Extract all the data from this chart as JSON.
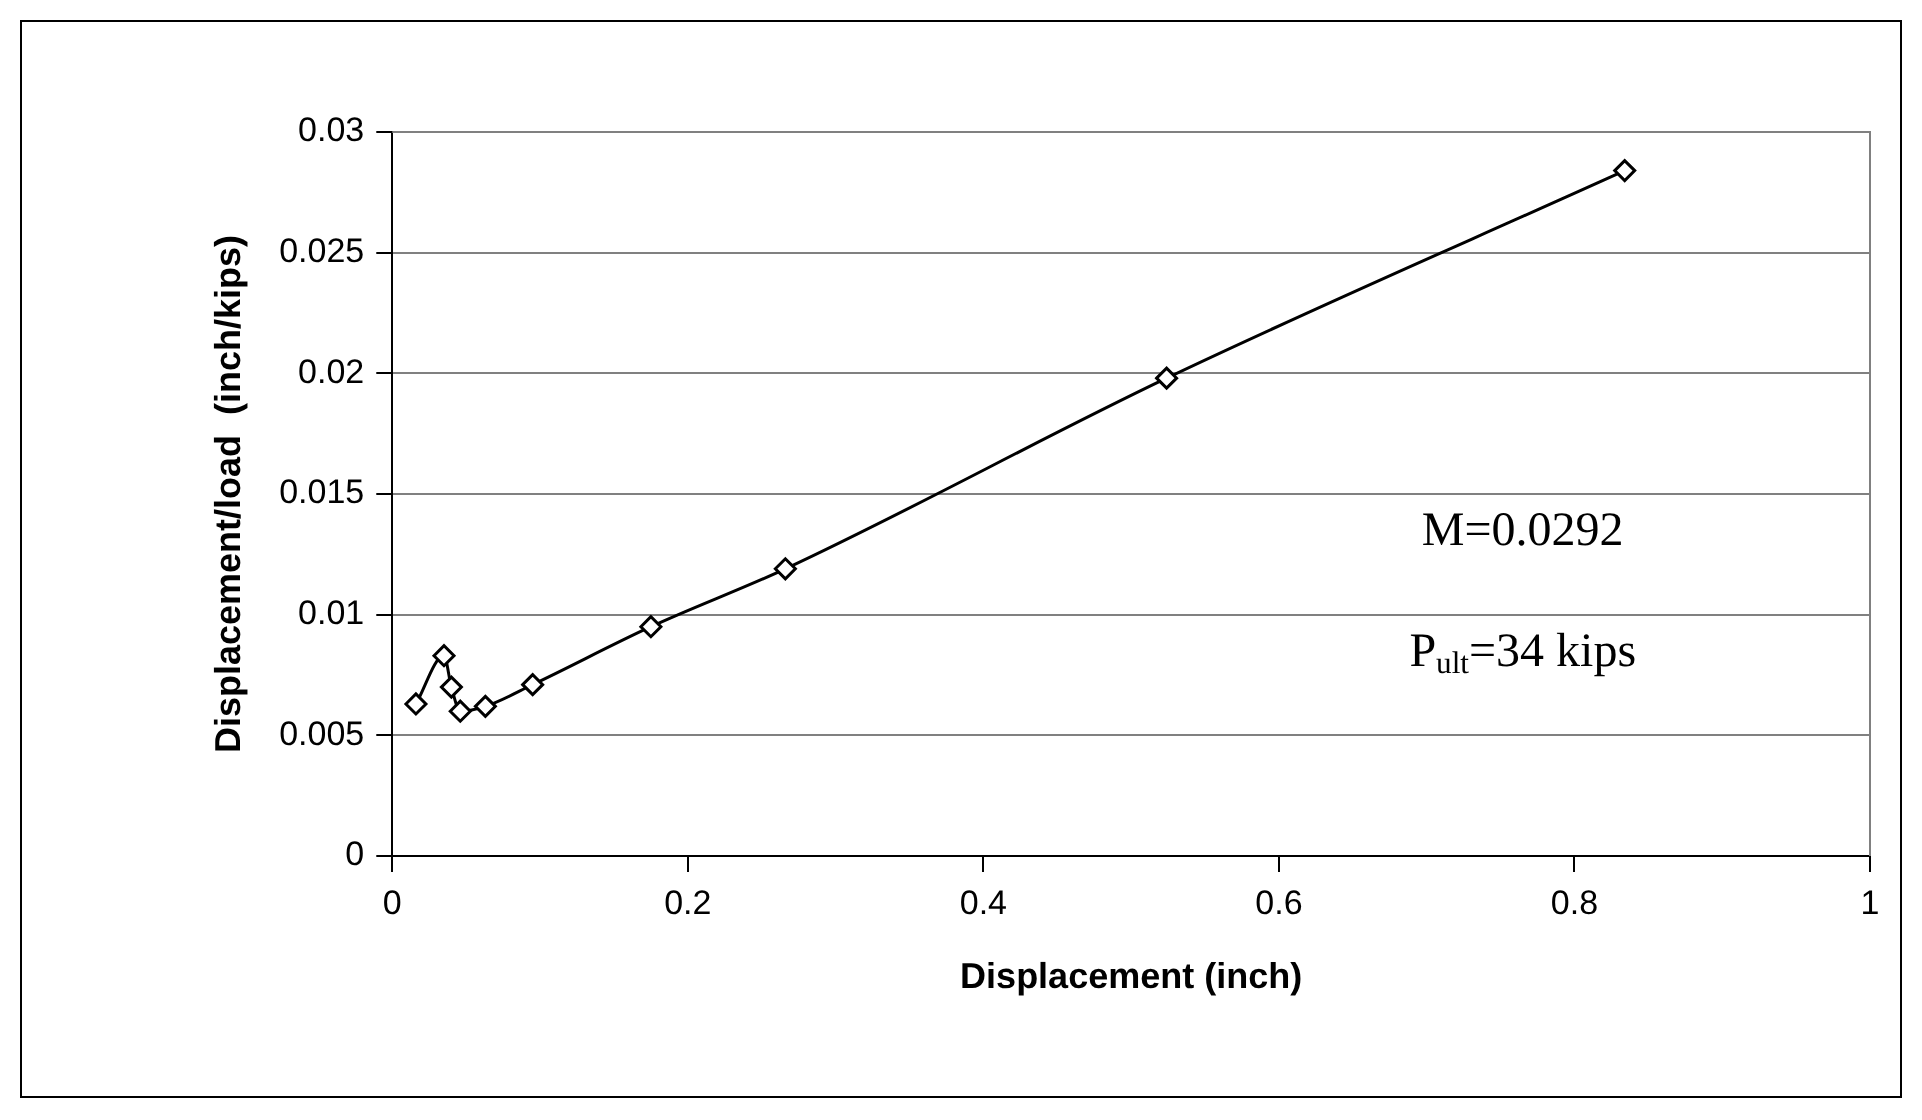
{
  "chart_data": {
    "type": "line",
    "xlabel": "Displacement (inch)",
    "ylabel": "Displacement/load  (inch/kips)",
    "x": [
      0.016,
      0.035,
      0.04,
      0.046,
      0.063,
      0.095,
      0.175,
      0.266,
      0.524,
      0.834
    ],
    "series": [
      {
        "color": "#000000",
        "values": [
          0.0063,
          0.0083,
          0.007,
          0.006,
          0.0062,
          0.0071,
          0.0095,
          0.0119,
          0.0198,
          0.0284
        ]
      }
    ],
    "xlim": [
      0,
      1
    ],
    "xticks": [
      0,
      0.2,
      0.4,
      0.6,
      0.8,
      1
    ],
    "ylim": [
      0,
      0.03
    ],
    "yticks": [
      0,
      0.005,
      0.01,
      0.015,
      0.02,
      0.025,
      0.03
    ],
    "grid": "y",
    "legend": false,
    "marker": "diamond",
    "line_style": "solid",
    "annotations": [
      "M=0.0292",
      "P$_{ult}$=34 kips"
    ]
  }
}
